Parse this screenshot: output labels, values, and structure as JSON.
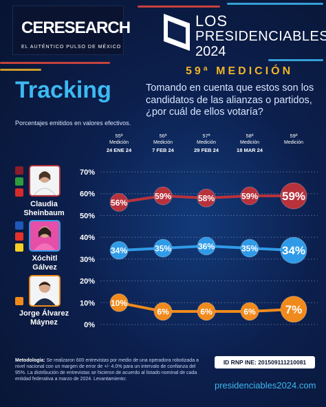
{
  "brand": {
    "logo_main": "CERESEARCH",
    "logo_sub": "EL AUTÉNTICO PULSO DE MÉXICO",
    "los_line1": "LOS",
    "los_line2": "PRESIDENCIABLES",
    "los_line3": "2024"
  },
  "header": {
    "medicion": "59ª MEDICIÓN",
    "tracking": "Tracking",
    "question": "Tomando en cuenta que estos son los candidatos de las alianzas o partidos, ¿por cuál de ellos votaría?",
    "note": "Porcentajes emitidos en valores efectivos."
  },
  "footer": {
    "method_label": "Metodología:",
    "method_text": "Se realizaron 600 entrevistas por medio de una operadora robotizada a nivel nacional con un margen de error de +/- 4.0% para un intervalo de confianza del 95%. La distribución de entrevistas se hicieron de acuerdo al listado nominal de cada entidad federativa a marzo de 2024. Levantamiento:",
    "id_rnp": "ID RNP INE: 201509111210081",
    "site": "presidenciables2024.com"
  },
  "candidates": [
    {
      "name": "Claudia Sheinbaum",
      "color": "#b8323c",
      "parties": [
        "MORENA",
        "PVEM",
        "PT"
      ]
    },
    {
      "name": "Xóchitl Gálvez",
      "color": "#2f9be8",
      "parties": [
        "PAN",
        "PRI",
        "PRD"
      ]
    },
    {
      "name": "Jorge Álvarez Máynez",
      "color": "#f08a1c",
      "parties": [
        "MC"
      ]
    }
  ],
  "chart_data": {
    "type": "line",
    "x": [
      "55ª Medición 24 ENE 24",
      "56ª Medición 7 FEB 24",
      "57ª Medición 29 FEB 24",
      "58ª Medición 18 MAR 24",
      "59ª Medición"
    ],
    "x_top": [
      "55ª",
      "56ª",
      "57ª",
      "58ª",
      "59ª"
    ],
    "x_mid": [
      "Medición",
      "Medición",
      "Medición",
      "Medición",
      "Medición"
    ],
    "x_date": [
      "24 ENE 24",
      "7 FEB 24",
      "29 FEB 24",
      "18 MAR 24",
      ""
    ],
    "ylim": [
      0,
      70
    ],
    "yticks": [
      0,
      10,
      20,
      30,
      40,
      50,
      60,
      70
    ],
    "ytick_labels": [
      "0%",
      "10%",
      "20%",
      "30%",
      "40%",
      "50%",
      "60%",
      "70%"
    ],
    "series": [
      {
        "name": "Claudia Sheinbaum",
        "values": [
          56,
          59,
          58,
          59,
          59
        ],
        "color": "#b8323c"
      },
      {
        "name": "Xóchitl Gálvez",
        "values": [
          34,
          35,
          36,
          35,
          34
        ],
        "color": "#2f9be8"
      },
      {
        "name": "Jorge Álvarez Máynez",
        "values": [
          10,
          6,
          6,
          6,
          7
        ],
        "color": "#f08a1c"
      }
    ],
    "grid": true
  }
}
